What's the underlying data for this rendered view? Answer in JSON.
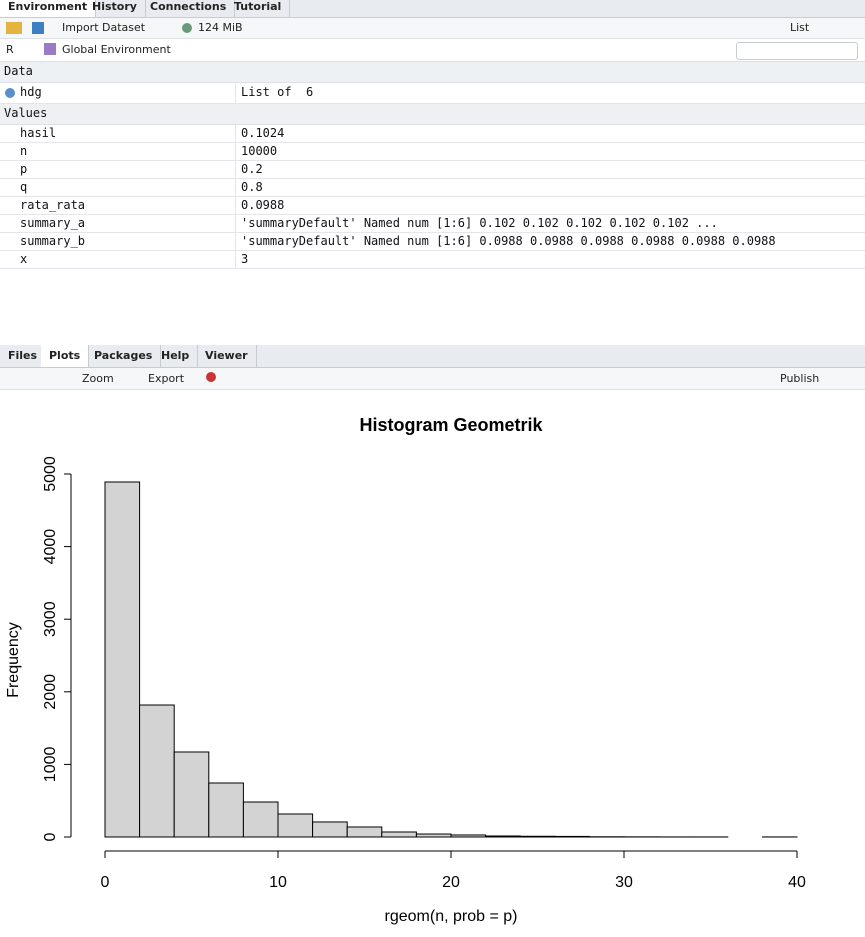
{
  "environment": {
    "tabs": [
      "Environment",
      "History",
      "Connections",
      "Tutorial"
    ],
    "toolbar": {
      "import": "Import Dataset",
      "memory": "124 MiB",
      "view": "List"
    },
    "scope": {
      "language": "R",
      "env": "Global Environment"
    },
    "data_section": "Data",
    "data_rows": [
      {
        "name": "hdg",
        "value": "List of  6"
      }
    ],
    "values_section": "Values",
    "values_rows": [
      {
        "name": "hasil",
        "value": "0.1024"
      },
      {
        "name": "n",
        "value": "10000"
      },
      {
        "name": "p",
        "value": "0.2"
      },
      {
        "name": "q",
        "value": "0.8"
      },
      {
        "name": "rata_rata",
        "value": "0.0988"
      },
      {
        "name": "summary_a",
        "value": "'summaryDefault' Named num [1:6] 0.102 0.102 0.102 0.102 0.102 ..."
      },
      {
        "name": "summary_b",
        "value": "'summaryDefault' Named num [1:6] 0.0988 0.0988 0.0988 0.0988 0.0988 0.0988"
      },
      {
        "name": "x",
        "value": "3"
      }
    ]
  },
  "plots_pane": {
    "tabs": [
      "Files",
      "Plots",
      "Packages",
      "Help",
      "Viewer"
    ],
    "toolbar": {
      "zoom": "Zoom",
      "export": "Export",
      "publish": "Publish"
    }
  },
  "chart_data": {
    "type": "histogram",
    "title": "Histogram Geometrik",
    "x_label": "rgeom(n, prob = p)",
    "y_label": "Frequency",
    "bins": [
      0,
      2,
      4,
      6,
      8,
      10,
      12,
      14,
      16,
      18,
      20,
      22,
      24,
      26,
      28,
      30,
      32,
      34,
      36,
      38,
      40
    ],
    "values": [
      4890,
      1818,
      1171,
      744,
      482,
      317,
      207,
      138,
      69,
      41,
      28,
      14,
      10,
      8,
      3,
      2,
      1,
      1,
      0,
      1
    ],
    "color": "#d3d3d3",
    "xlim": [
      0,
      40
    ],
    "xticks": [
      0,
      10,
      20,
      30,
      40
    ],
    "ylim": [
      0,
      5000
    ],
    "yticks": [
      0,
      1000,
      2000,
      3000,
      4000,
      5000
    ],
    "grid": false
  }
}
